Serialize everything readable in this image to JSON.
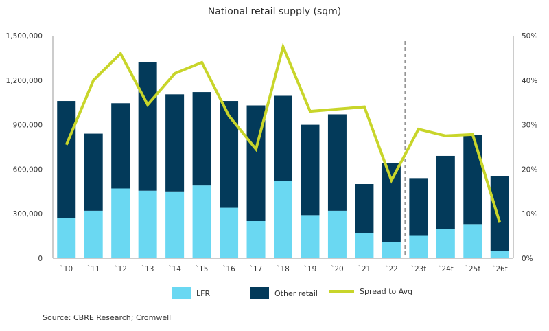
{
  "chart_data": {
    "type": "bar",
    "title": "National retail supply (sqm)",
    "categories": [
      "`10",
      "`11",
      "`12",
      "`13",
      "`14",
      "`15",
      "`16",
      "`17",
      "`18",
      "`19",
      "`20",
      "`21",
      "`22",
      "`23f",
      "`24f",
      "`25f",
      "`26f"
    ],
    "stacked": true,
    "series": [
      {
        "name": "LFR",
        "kind": "bar",
        "axis": "left",
        "color": "#6ad8f2",
        "values": [
          270000,
          320000,
          470000,
          455000,
          450000,
          490000,
          340000,
          250000,
          520000,
          290000,
          320000,
          170000,
          110000,
          155000,
          195000,
          230000,
          50000
        ]
      },
      {
        "name": "Other retail",
        "kind": "bar",
        "axis": "left",
        "color": "#033a5a",
        "values": [
          790000,
          520000,
          575000,
          865000,
          655000,
          630000,
          720000,
          780000,
          575000,
          610000,
          650000,
          330000,
          530000,
          385000,
          495000,
          600000,
          505000
        ]
      },
      {
        "name": "Spread to Avg",
        "kind": "line",
        "axis": "right",
        "color": "#c8d52a",
        "values": [
          25.5,
          40.0,
          46.0,
          34.5,
          41.5,
          44.0,
          32.0,
          24.5,
          47.5,
          33.0,
          33.5,
          34.0,
          17.5,
          29.0,
          27.5,
          27.8,
          8.0
        ]
      }
    ],
    "y_left": {
      "lim": [
        0,
        1500000
      ],
      "ticks": [
        "0",
        "300,000",
        "600,000",
        "900,000",
        "1,200,000",
        "1,500,000"
      ],
      "tick_values": [
        0,
        300000,
        600000,
        900000,
        1200000,
        1500000
      ]
    },
    "y_right": {
      "lim": [
        0,
        50
      ],
      "ticks": [
        "0%",
        "10%",
        "20%",
        "30%",
        "40%",
        "50%"
      ],
      "tick_values": [
        0,
        10,
        20,
        30,
        40,
        50
      ]
    },
    "forecast_divider_after_index": 12,
    "grid": false,
    "legend_position": "bottom"
  },
  "legend": {
    "lfr": "LFR",
    "other": "Other retail",
    "spread": "Spread to Avg"
  },
  "source": "Source: CBRE Research; Cromwell"
}
